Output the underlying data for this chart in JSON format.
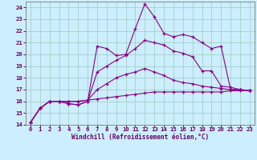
{
  "xlabel": "Windchill (Refroidissement éolien,°C)",
  "bg_color": "#cceeff",
  "line_color": "#880088",
  "grid_color": "#99ccbb",
  "xlim": [
    -0.5,
    23.5
  ],
  "ylim": [
    14,
    24.5
  ],
  "xticks": [
    0,
    1,
    2,
    3,
    4,
    5,
    6,
    7,
    8,
    9,
    10,
    11,
    12,
    13,
    14,
    15,
    16,
    17,
    18,
    19,
    20,
    21,
    22,
    23
  ],
  "yticks": [
    14,
    15,
    16,
    17,
    18,
    19,
    20,
    21,
    22,
    23,
    24
  ],
  "series": [
    [
      [
        0,
        1,
        2,
        3,
        4,
        5,
        6,
        7,
        8,
        9,
        10,
        11,
        12,
        13,
        14,
        15,
        16,
        17,
        18,
        19,
        20,
        21,
        22,
        23
      ],
      [
        14.2,
        15.4,
        16.0,
        16.0,
        15.8,
        15.7,
        16.0,
        20.7,
        20.5,
        19.9,
        20.0,
        22.2,
        24.3,
        23.2,
        21.8,
        21.5,
        21.7,
        21.5,
        21.0,
        20.5,
        20.7,
        17.0,
        17.0,
        16.9
      ]
    ],
    [
      [
        0,
        1,
        2,
        3,
        4,
        5,
        6,
        7,
        8,
        9,
        10,
        11,
        12,
        13,
        14,
        15,
        16,
        17,
        18,
        19,
        20,
        21,
        22,
        23
      ],
      [
        14.2,
        15.4,
        16.0,
        16.0,
        15.8,
        15.7,
        16.0,
        18.5,
        19.0,
        19.5,
        19.9,
        20.5,
        21.2,
        21.0,
        20.8,
        20.3,
        20.1,
        19.8,
        18.6,
        18.6,
        17.3,
        17.2,
        17.0,
        16.9
      ]
    ],
    [
      [
        0,
        1,
        2,
        3,
        4,
        5,
        6,
        7,
        8,
        9,
        10,
        11,
        12,
        13,
        14,
        15,
        16,
        17,
        18,
        19,
        20,
        21,
        22,
        23
      ],
      [
        14.2,
        15.4,
        16.0,
        16.0,
        16.0,
        16.0,
        16.1,
        17.0,
        17.5,
        18.0,
        18.3,
        18.5,
        18.8,
        18.5,
        18.2,
        17.8,
        17.6,
        17.5,
        17.3,
        17.2,
        17.1,
        17.0,
        17.0,
        16.9
      ]
    ],
    [
      [
        0,
        1,
        2,
        3,
        4,
        5,
        6,
        7,
        8,
        9,
        10,
        11,
        12,
        13,
        14,
        15,
        16,
        17,
        18,
        19,
        20,
        21,
        22,
        23
      ],
      [
        14.2,
        15.4,
        16.0,
        16.0,
        16.0,
        16.0,
        16.1,
        16.2,
        16.3,
        16.4,
        16.5,
        16.6,
        16.7,
        16.8,
        16.8,
        16.8,
        16.8,
        16.8,
        16.8,
        16.8,
        16.8,
        16.9,
        16.9,
        16.9
      ]
    ]
  ]
}
